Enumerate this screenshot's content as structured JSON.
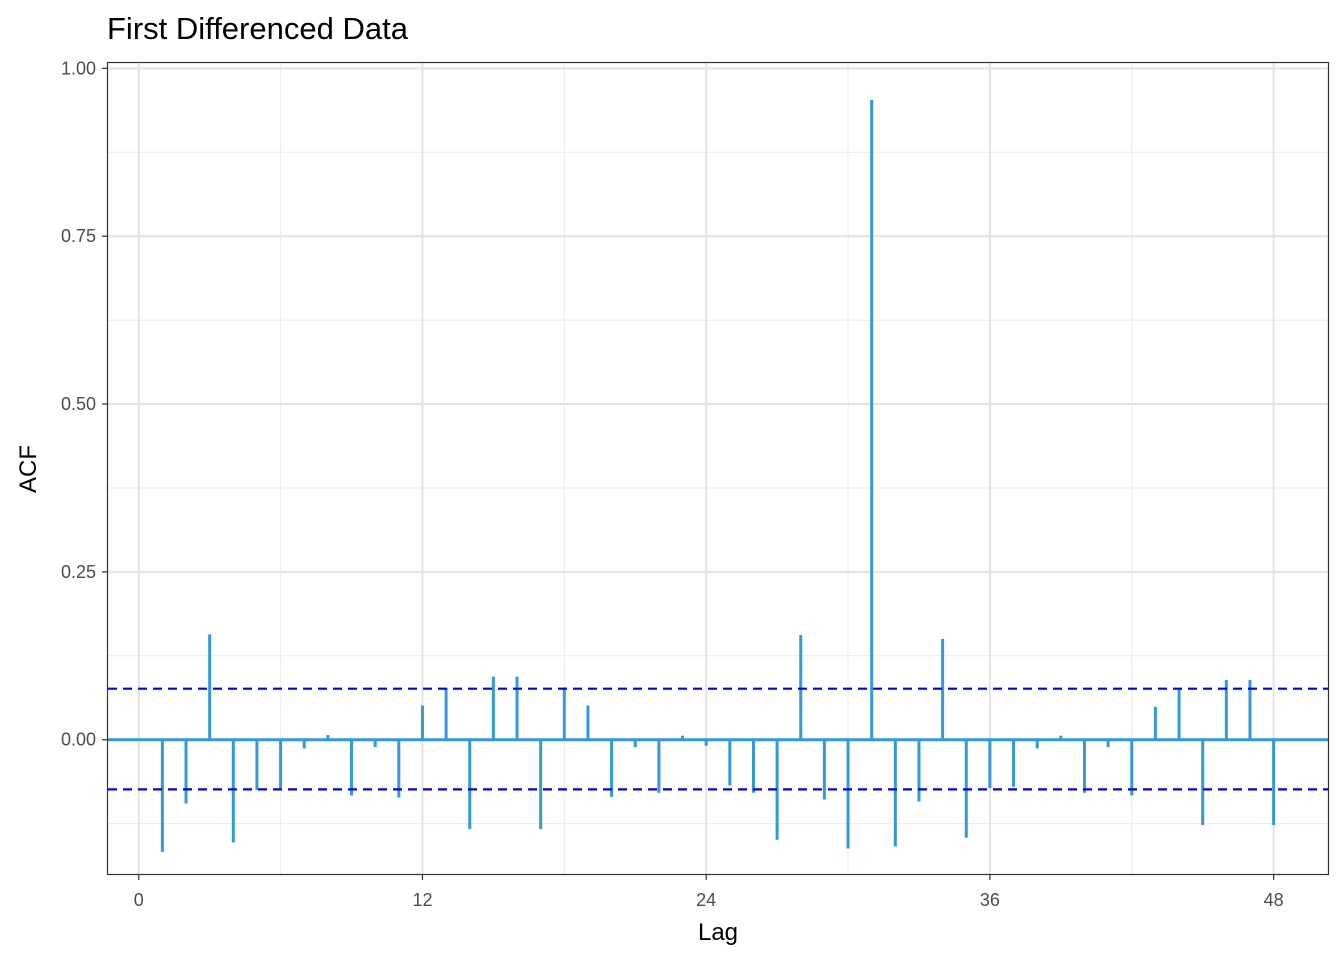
{
  "chart_data": {
    "type": "bar",
    "title": "First Differenced Data",
    "xlabel": "Lag",
    "ylabel": "ACF",
    "xlim": [
      -1.3,
      50.3
    ],
    "ylim": [
      -0.2,
      1.008
    ],
    "x_ticks": [
      0,
      12,
      24,
      36,
      48
    ],
    "x_tick_labels": [
      "0",
      "12",
      "24",
      "36",
      "48"
    ],
    "y_ticks": [
      0,
      0.25,
      0.5,
      0.75,
      1.0
    ],
    "y_tick_labels": [
      "0.00",
      "0.25",
      "0.50",
      "0.75",
      "1.00"
    ],
    "grid": true,
    "confidence_bounds": [
      0.076,
      -0.074
    ],
    "bar_color": "#3399dd",
    "bound_color": "#0000ee",
    "lags": [
      1,
      2,
      3,
      4,
      5,
      6,
      7,
      8,
      9,
      10,
      11,
      12,
      13,
      14,
      15,
      16,
      17,
      18,
      19,
      20,
      21,
      22,
      23,
      24,
      25,
      26,
      27,
      28,
      29,
      30,
      31,
      32,
      33,
      34,
      35,
      36,
      37,
      38,
      39,
      40,
      41,
      42,
      43,
      44,
      45,
      46,
      47,
      48
    ],
    "values": [
      -0.167,
      -0.095,
      0.157,
      -0.153,
      -0.075,
      -0.072,
      -0.013,
      0.007,
      -0.083,
      -0.011,
      -0.086,
      0.051,
      0.077,
      -0.133,
      0.094,
      0.094,
      -0.133,
      0.078,
      0.051,
      -0.085,
      -0.011,
      -0.079,
      0.006,
      -0.009,
      -0.068,
      -0.079,
      -0.149,
      0.156,
      -0.089,
      -0.162,
      0.953,
      -0.159,
      -0.092,
      0.15,
      -0.146,
      -0.072,
      -0.07,
      -0.013,
      0.006,
      -0.079,
      -0.011,
      -0.083,
      0.049,
      0.077,
      -0.127,
      0.089,
      0.089,
      -0.127
    ]
  }
}
